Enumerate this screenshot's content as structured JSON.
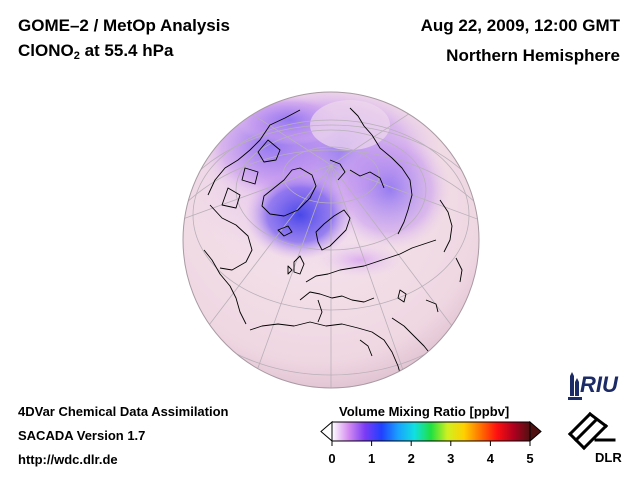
{
  "header": {
    "title_line1": "GOME–2 / MetOp Analysis",
    "species": "ClONO",
    "species_subscript": "2",
    "level_text": " at 55.4 hPa",
    "datetime": "Aug 22, 2009, 12:00 GMT",
    "hemisphere": "Northern Hemisphere"
  },
  "footer": {
    "line1": "4DVar Chemical Data Assimilation",
    "line2": "SACADA Version 1.7",
    "line3": "http://wdc.dlr.de"
  },
  "colorbar": {
    "title": "Volume Mixing Ratio [ppbv]",
    "ticks": [
      "0",
      "1",
      "2",
      "3",
      "4",
      "5"
    ],
    "range": [
      0,
      5
    ],
    "colors": [
      "#ffffff",
      "#d48cf0",
      "#7a3cf5",
      "#2040ff",
      "#1aa0ff",
      "#10e0e0",
      "#20e040",
      "#d0f020",
      "#ffd000",
      "#ff7000",
      "#ff1010",
      "#b00020",
      "#501010"
    ]
  },
  "logos": {
    "riu": "RIU",
    "dlr": "DLR"
  },
  "map_colors": {
    "background_low": "#f3e0ea",
    "mid": "#e2a8f0",
    "high": "#8068f0",
    "max": "#4848e8",
    "coastline": "#000000",
    "grid": "#b8b0b8"
  }
}
